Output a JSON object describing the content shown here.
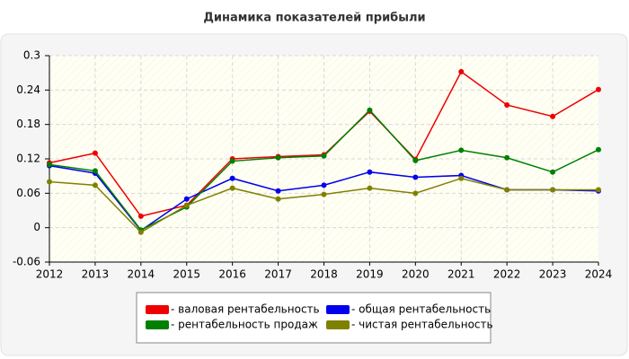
{
  "chart_data": {
    "type": "line",
    "title": "Динамика показателей прибыли",
    "categories": [
      "2012",
      "2013",
      "2014",
      "2015",
      "2016",
      "2017",
      "2018",
      "2019",
      "2020",
      "2021",
      "2022",
      "2023",
      "2024"
    ],
    "series": [
      {
        "name": "- валовая рентабельность",
        "color": "#ee0000",
        "values": [
          0.113,
          0.13,
          0.02,
          0.039,
          0.12,
          0.124,
          0.127,
          0.203,
          0.119,
          0.272,
          0.214,
          0.194,
          0.241
        ]
      },
      {
        "name": "- общая рентабельность",
        "color": "#0000ee",
        "values": [
          0.108,
          0.095,
          -0.005,
          0.05,
          0.086,
          0.064,
          0.074,
          0.097,
          0.088,
          0.091,
          0.066,
          0.066,
          0.064
        ]
      },
      {
        "name": "- рентабельность продаж",
        "color": "#008000",
        "values": [
          0.11,
          0.099,
          -0.004,
          0.036,
          0.116,
          0.122,
          0.125,
          0.205,
          0.117,
          0.135,
          0.122,
          0.097,
          0.136
        ]
      },
      {
        "name": "- чистая рентабельность",
        "color": "#808000",
        "values": [
          0.08,
          0.074,
          -0.008,
          0.039,
          0.069,
          0.05,
          0.058,
          0.069,
          0.06,
          0.086,
          0.066,
          0.066,
          0.066
        ]
      }
    ],
    "ylim": [
      -0.06,
      0.3
    ],
    "yticks": [
      -0.06,
      0,
      0.06,
      0.12,
      0.18,
      0.24,
      0.3
    ],
    "grid": true,
    "legend": "bottom"
  }
}
